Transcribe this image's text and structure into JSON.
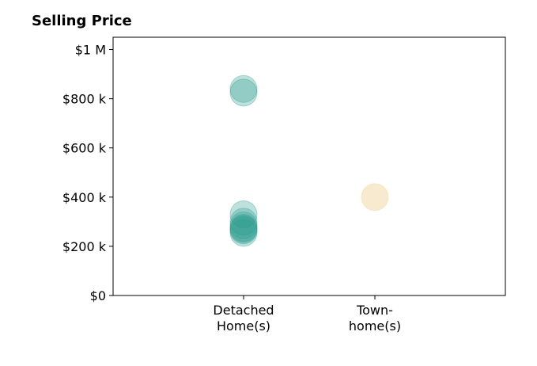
{
  "chart_data": {
    "type": "scatter",
    "title": "Selling Price",
    "xlabel": "",
    "ylabel": "",
    "categories": [
      [
        "Detached",
        "Home(s)"
      ],
      [
        "Town-",
        "home(s)"
      ]
    ],
    "y_ticks": [
      "$0",
      "$200 k",
      "$400 k",
      "$600 k",
      "$800 k",
      "$1 M"
    ],
    "y_tick_values": [
      0,
      200000,
      400000,
      600000,
      800000,
      1000000
    ],
    "ylim": [
      0,
      1050000
    ],
    "grid": false,
    "series": [
      {
        "category": 0,
        "color": "#2a9d8f",
        "values": [
          840000,
          825000,
          330000,
          300000,
          285000,
          275000,
          270000,
          265000,
          255000
        ]
      },
      {
        "category": 1,
        "color": "#f0d9a6",
        "values": [
          400000
        ]
      }
    ]
  }
}
